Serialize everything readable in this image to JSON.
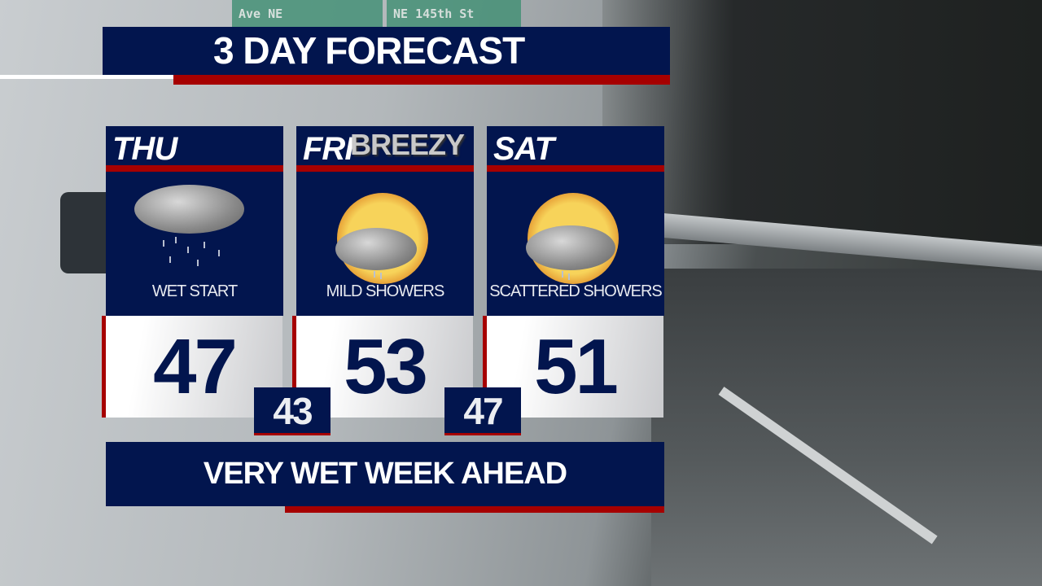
{
  "background": {
    "signs": [
      "Ave NE",
      "NE 145th St"
    ]
  },
  "title": "3 DAY FORECAST",
  "days": [
    {
      "day": "THU",
      "condition": "WET START",
      "icon": "rain-cloud-icon",
      "high": "47",
      "low": "43"
    },
    {
      "day": "FRI",
      "condition": "MILD SHOWERS",
      "icon": "sun-cloud-showers-icon",
      "badge": "BREEZY",
      "high": "53",
      "low": "47"
    },
    {
      "day": "SAT",
      "condition": "SCATTERED SHOWERS",
      "icon": "sun-cloud-showers-icon",
      "high": "51"
    }
  ],
  "banner": "VERY WET WEEK AHEAD",
  "colors": {
    "navy": "#02154e",
    "red": "#a60000"
  }
}
